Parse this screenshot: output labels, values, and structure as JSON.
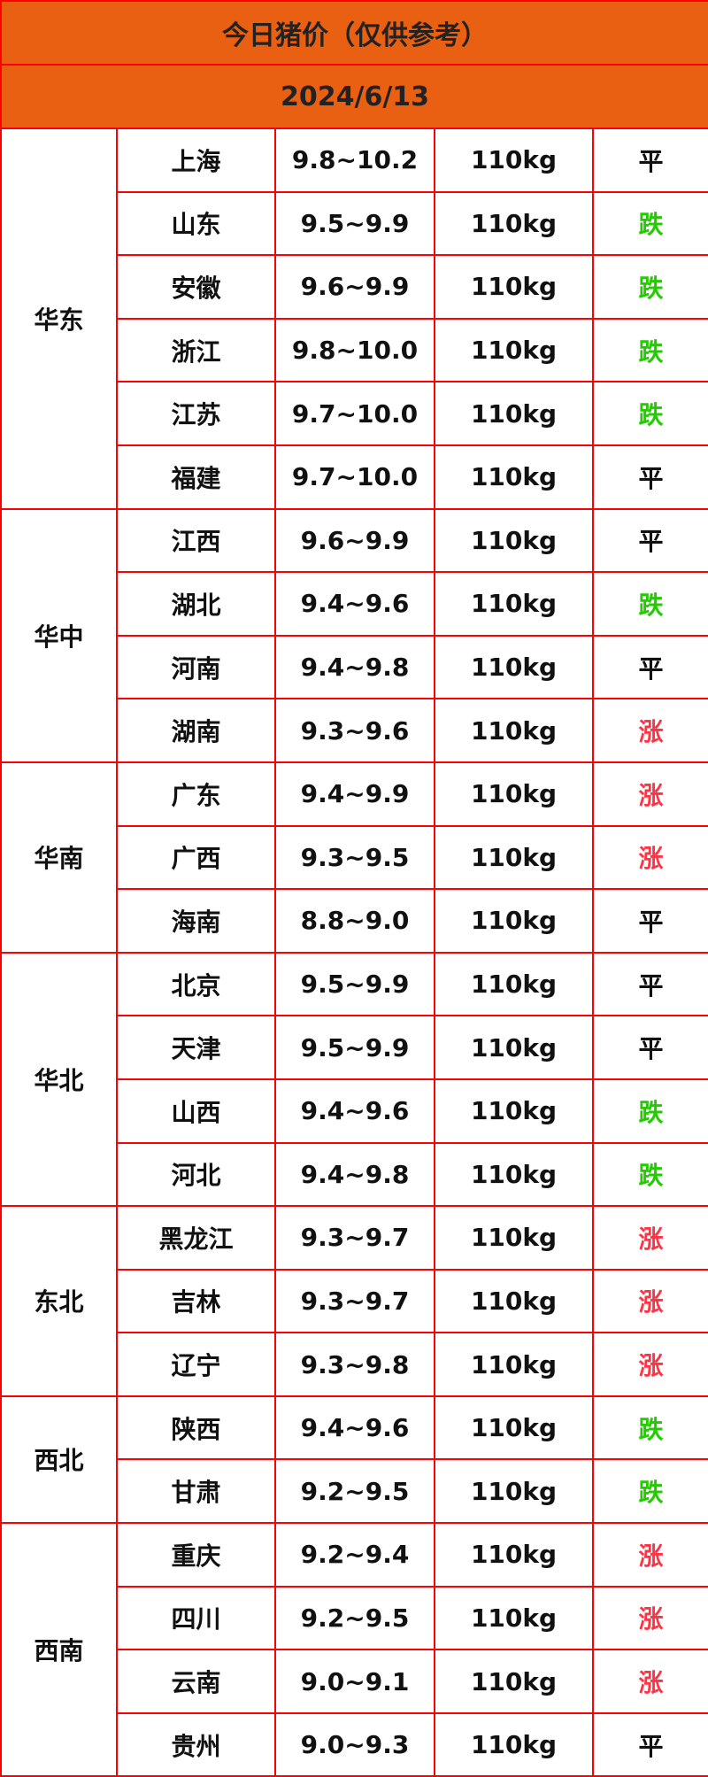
{
  "title": "今日猪价（仅供参考）",
  "date": "2024/6/13",
  "colors": {
    "header_bg": "#e96012",
    "border": "#ff0000",
    "fall": "#22cc00",
    "rise": "#ff3344",
    "flat": "#111111"
  },
  "regions": [
    {
      "name": "华东",
      "rows": [
        {
          "province": "上海",
          "price": "9.8~10.2",
          "weight": "110kg",
          "trend": "平"
        },
        {
          "province": "山东",
          "price": "9.5~9.9",
          "weight": "110kg",
          "trend": "跌"
        },
        {
          "province": "安徽",
          "price": "9.6~9.9",
          "weight": "110kg",
          "trend": "跌"
        },
        {
          "province": "浙江",
          "price": "9.8~10.0",
          "weight": "110kg",
          "trend": "跌"
        },
        {
          "province": "江苏",
          "price": "9.7~10.0",
          "weight": "110kg",
          "trend": "跌"
        },
        {
          "province": "福建",
          "price": "9.7~10.0",
          "weight": "110kg",
          "trend": "平"
        }
      ]
    },
    {
      "name": "华中",
      "rows": [
        {
          "province": "江西",
          "price": "9.6~9.9",
          "weight": "110kg",
          "trend": "平"
        },
        {
          "province": "湖北",
          "price": "9.4~9.6",
          "weight": "110kg",
          "trend": "跌"
        },
        {
          "province": "河南",
          "price": "9.4~9.8",
          "weight": "110kg",
          "trend": "平"
        },
        {
          "province": "湖南",
          "price": "9.3~9.6",
          "weight": "110kg",
          "trend": "涨"
        }
      ]
    },
    {
      "name": "华南",
      "rows": [
        {
          "province": "广东",
          "price": "9.4~9.9",
          "weight": "110kg",
          "trend": "涨"
        },
        {
          "province": "广西",
          "price": "9.3~9.5",
          "weight": "110kg",
          "trend": "涨"
        },
        {
          "province": "海南",
          "price": "8.8~9.0",
          "weight": "110kg",
          "trend": "平"
        }
      ]
    },
    {
      "name": "华北",
      "rows": [
        {
          "province": "北京",
          "price": "9.5~9.9",
          "weight": "110kg",
          "trend": "平"
        },
        {
          "province": "天津",
          "price": "9.5~9.9",
          "weight": "110kg",
          "trend": "平"
        },
        {
          "province": "山西",
          "price": "9.4~9.6",
          "weight": "110kg",
          "trend": "跌"
        },
        {
          "province": "河北",
          "price": "9.4~9.8",
          "weight": "110kg",
          "trend": "跌"
        }
      ]
    },
    {
      "name": "东北",
      "rows": [
        {
          "province": "黑龙江",
          "price": "9.3~9.7",
          "weight": "110kg",
          "trend": "涨"
        },
        {
          "province": "吉林",
          "price": "9.3~9.7",
          "weight": "110kg",
          "trend": "涨"
        },
        {
          "province": "辽宁",
          "price": "9.3~9.8",
          "weight": "110kg",
          "trend": "涨"
        }
      ]
    },
    {
      "name": "西北",
      "rows": [
        {
          "province": "陕西",
          "price": "9.4~9.6",
          "weight": "110kg",
          "trend": "跌"
        },
        {
          "province": "甘肃",
          "price": "9.2~9.5",
          "weight": "110kg",
          "trend": "跌"
        }
      ]
    },
    {
      "name": "西南",
      "rows": [
        {
          "province": "重庆",
          "price": "9.2~9.4",
          "weight": "110kg",
          "trend": "涨"
        },
        {
          "province": "四川",
          "price": "9.2~9.5",
          "weight": "110kg",
          "trend": "涨"
        },
        {
          "province": "云南",
          "price": "9.0~9.1",
          "weight": "110kg",
          "trend": "涨"
        },
        {
          "province": "贵州",
          "price": "9.0~9.3",
          "weight": "110kg",
          "trend": "平"
        }
      ]
    }
  ]
}
